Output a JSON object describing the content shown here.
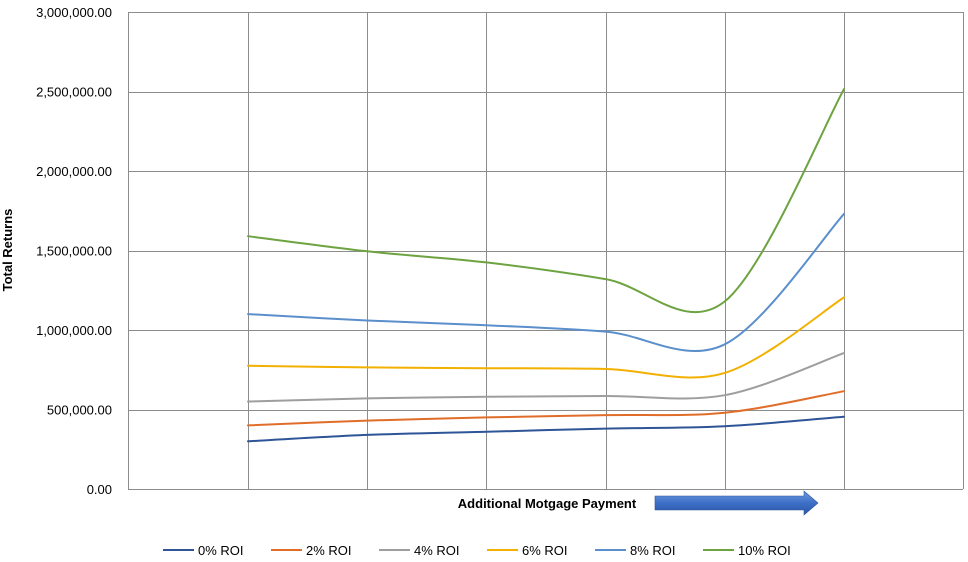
{
  "chart_data": {
    "type": "line",
    "title": "",
    "xlabel": "Additional  Motgage Payment",
    "ylabel": "Total Returns",
    "x": [
      1,
      2,
      3,
      4,
      5,
      6
    ],
    "ylim": [
      0,
      3000000
    ],
    "yticks": [
      0,
      500000,
      1000000,
      1500000,
      2000000,
      2500000,
      3000000
    ],
    "ytick_labels": [
      "0.00",
      "500,000.00",
      "1,000,000.00",
      "1,500,000.00",
      "2,000,000.00",
      "2,500,000.00",
      "3,000,000.00"
    ],
    "grid": true,
    "legend_position": "bottom",
    "arrow_direction": "right",
    "series": [
      {
        "name": "0% ROI",
        "color": "#2e5597",
        "values": [
          300000,
          340000,
          360000,
          380000,
          395000,
          455000
        ]
      },
      {
        "name": "2% ROI",
        "color": "#e06d29",
        "values": [
          400000,
          430000,
          450000,
          465000,
          480000,
          615000
        ]
      },
      {
        "name": "4% ROI",
        "color": "#9e9e9e",
        "values": [
          550000,
          570000,
          580000,
          585000,
          590000,
          855000
        ]
      },
      {
        "name": "6% ROI",
        "color": "#f2b000",
        "values": [
          775000,
          765000,
          760000,
          755000,
          730000,
          1205000
        ]
      },
      {
        "name": "8% ROI",
        "color": "#5b8fcc",
        "values": [
          1100000,
          1060000,
          1030000,
          990000,
          910000,
          1730000
        ]
      },
      {
        "name": "10% ROI",
        "color": "#6da340",
        "values": [
          1590000,
          1495000,
          1425000,
          1320000,
          1180000,
          2515000
        ]
      }
    ]
  }
}
